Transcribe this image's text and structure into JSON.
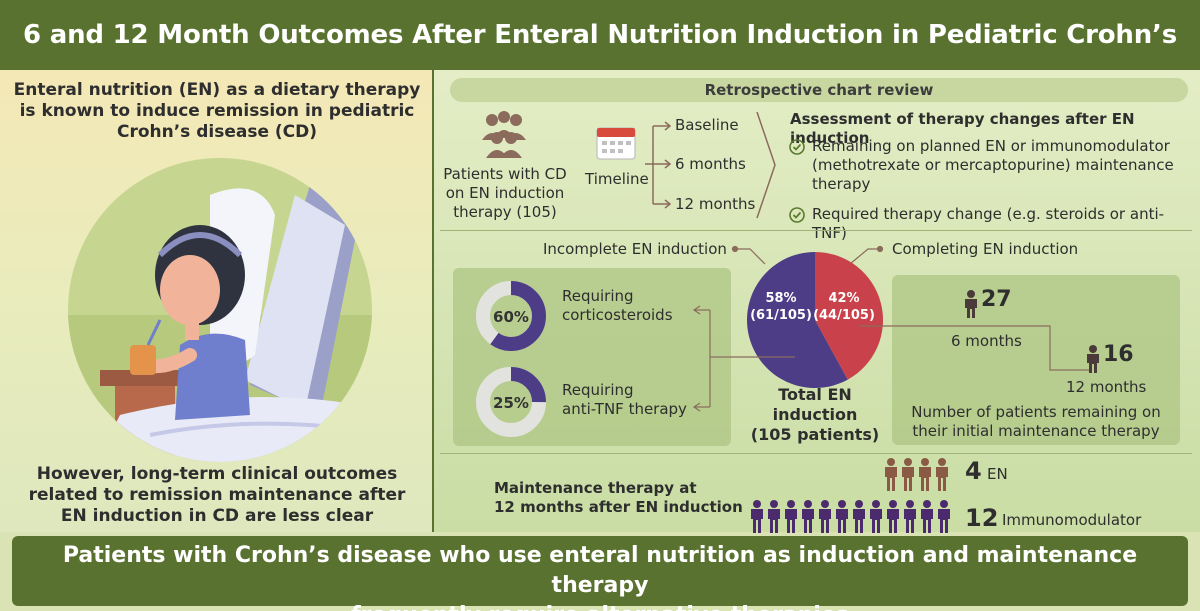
{
  "header": {
    "title": "6 and 12 Month Outcomes After Enteral Nutrition Induction in Pediatric Crohn’s Disease"
  },
  "left": {
    "intro_lines": [
      "Enteral nutrition (EN) as a dietary therapy",
      "is known to induce remission in pediatric",
      "Crohn’s disease (CD)"
    ],
    "bottom_lines": [
      "However, long-term clinical outcomes",
      "related to remission maintenance after",
      "EN induction in CD are less clear"
    ]
  },
  "review": {
    "title": "Retrospective chart review",
    "patients_lines": [
      "Patients with CD",
      "on EN induction",
      "therapy (105)"
    ],
    "timeline_label": "Timeline",
    "timepoints": [
      "Baseline",
      "6 months",
      "12 months"
    ],
    "assessment_title": "Assessment of therapy changes after EN induction",
    "assessment_items": [
      {
        "lines": [
          "Remaining on planned EN or immunomodulator",
          "(methotrexate or mercaptopurine) maintenance",
          "therapy"
        ]
      },
      {
        "lines": [
          "Required therapy change (e.g. steroids or anti-TNF)"
        ]
      }
    ]
  },
  "induction": {
    "incomplete_label": "Incomplete EN induction",
    "complete_label": "Completing EN induction",
    "pie": {
      "incomplete_pct": "58%",
      "incomplete_count": "(61/105)",
      "complete_pct": "42%",
      "complete_count": "(44/105)",
      "incomplete_value": 58,
      "complete_value": 42
    },
    "total_lines": [
      "Total EN",
      "induction",
      "(105 patients)"
    ],
    "donuts": [
      {
        "value": 60,
        "label": "60%",
        "lines": [
          "Requiring",
          "corticosteroids"
        ]
      },
      {
        "value": 25,
        "label": "25%",
        "lines": [
          "Requiring",
          "anti-TNF therapy"
        ]
      }
    ],
    "remaining": {
      "six_count": "27",
      "six_label": "6 months",
      "twelve_count": "16",
      "twelve_label": "12 months",
      "caption_lines": [
        "Number of patients remaining on",
        "their initial maintenance therapy"
      ]
    }
  },
  "maintenance": {
    "title_lines": [
      "Maintenance therapy at",
      "12 months after EN induction"
    ],
    "en_count": "4",
    "en_label": "EN",
    "immuno_count": "12",
    "immuno_label": "Immunomodulator",
    "en_color": "#8a5a44",
    "immuno_color": "#4b2a6e"
  },
  "footer": {
    "lines": [
      "Patients with Crohn’s disease who use enteral nutrition as induction and maintenance therapy",
      "frequently require alternative therapies"
    ]
  }
}
